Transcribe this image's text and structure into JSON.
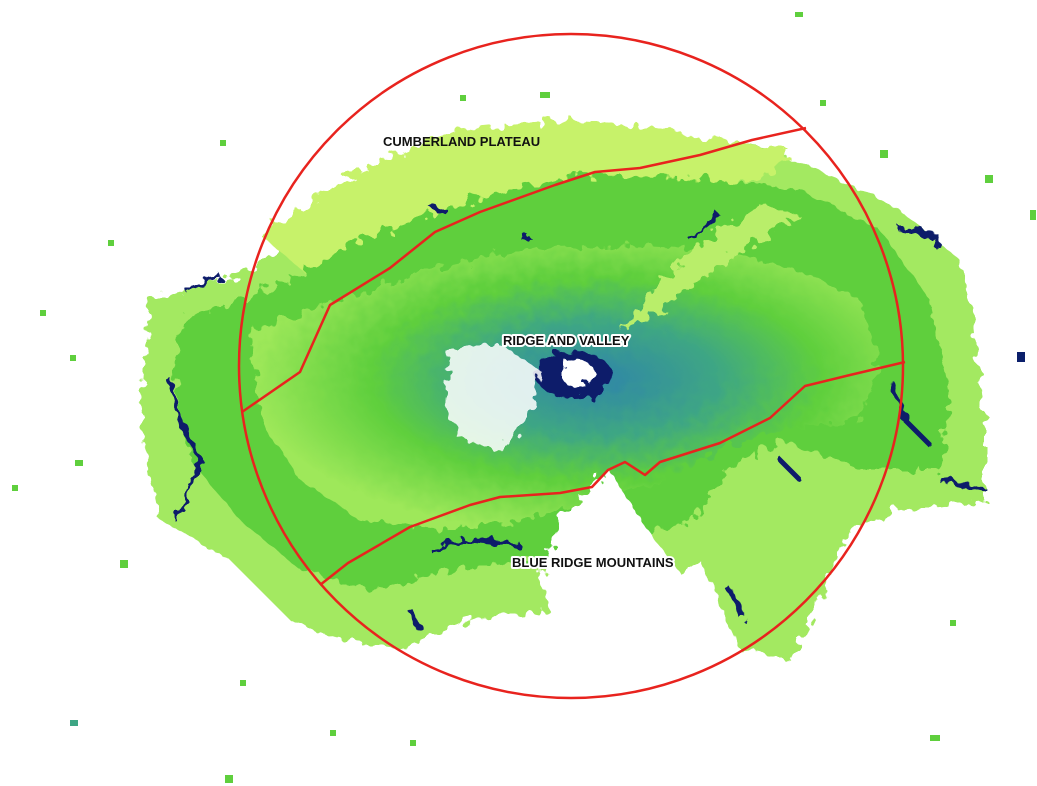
{
  "map": {
    "region_labels": {
      "cumberland": "CUMBERLAND PLATEAU",
      "ridge_valley": "RIDGE AND VALLEY",
      "blue_ridge": "BLUE RIDGE MOUNTAINS"
    },
    "colors": {
      "background": "#ffffff",
      "boundary": "#e8231e",
      "echo_outer": "#9ee85a",
      "echo_light": "#c7f26b",
      "echo_mid": "#5fcf3d",
      "echo_teal": "#3ea684",
      "echo_blue": "#2f86a8",
      "echo_dark": "#0b1f6b",
      "echo_void": "#ffffff"
    }
  }
}
